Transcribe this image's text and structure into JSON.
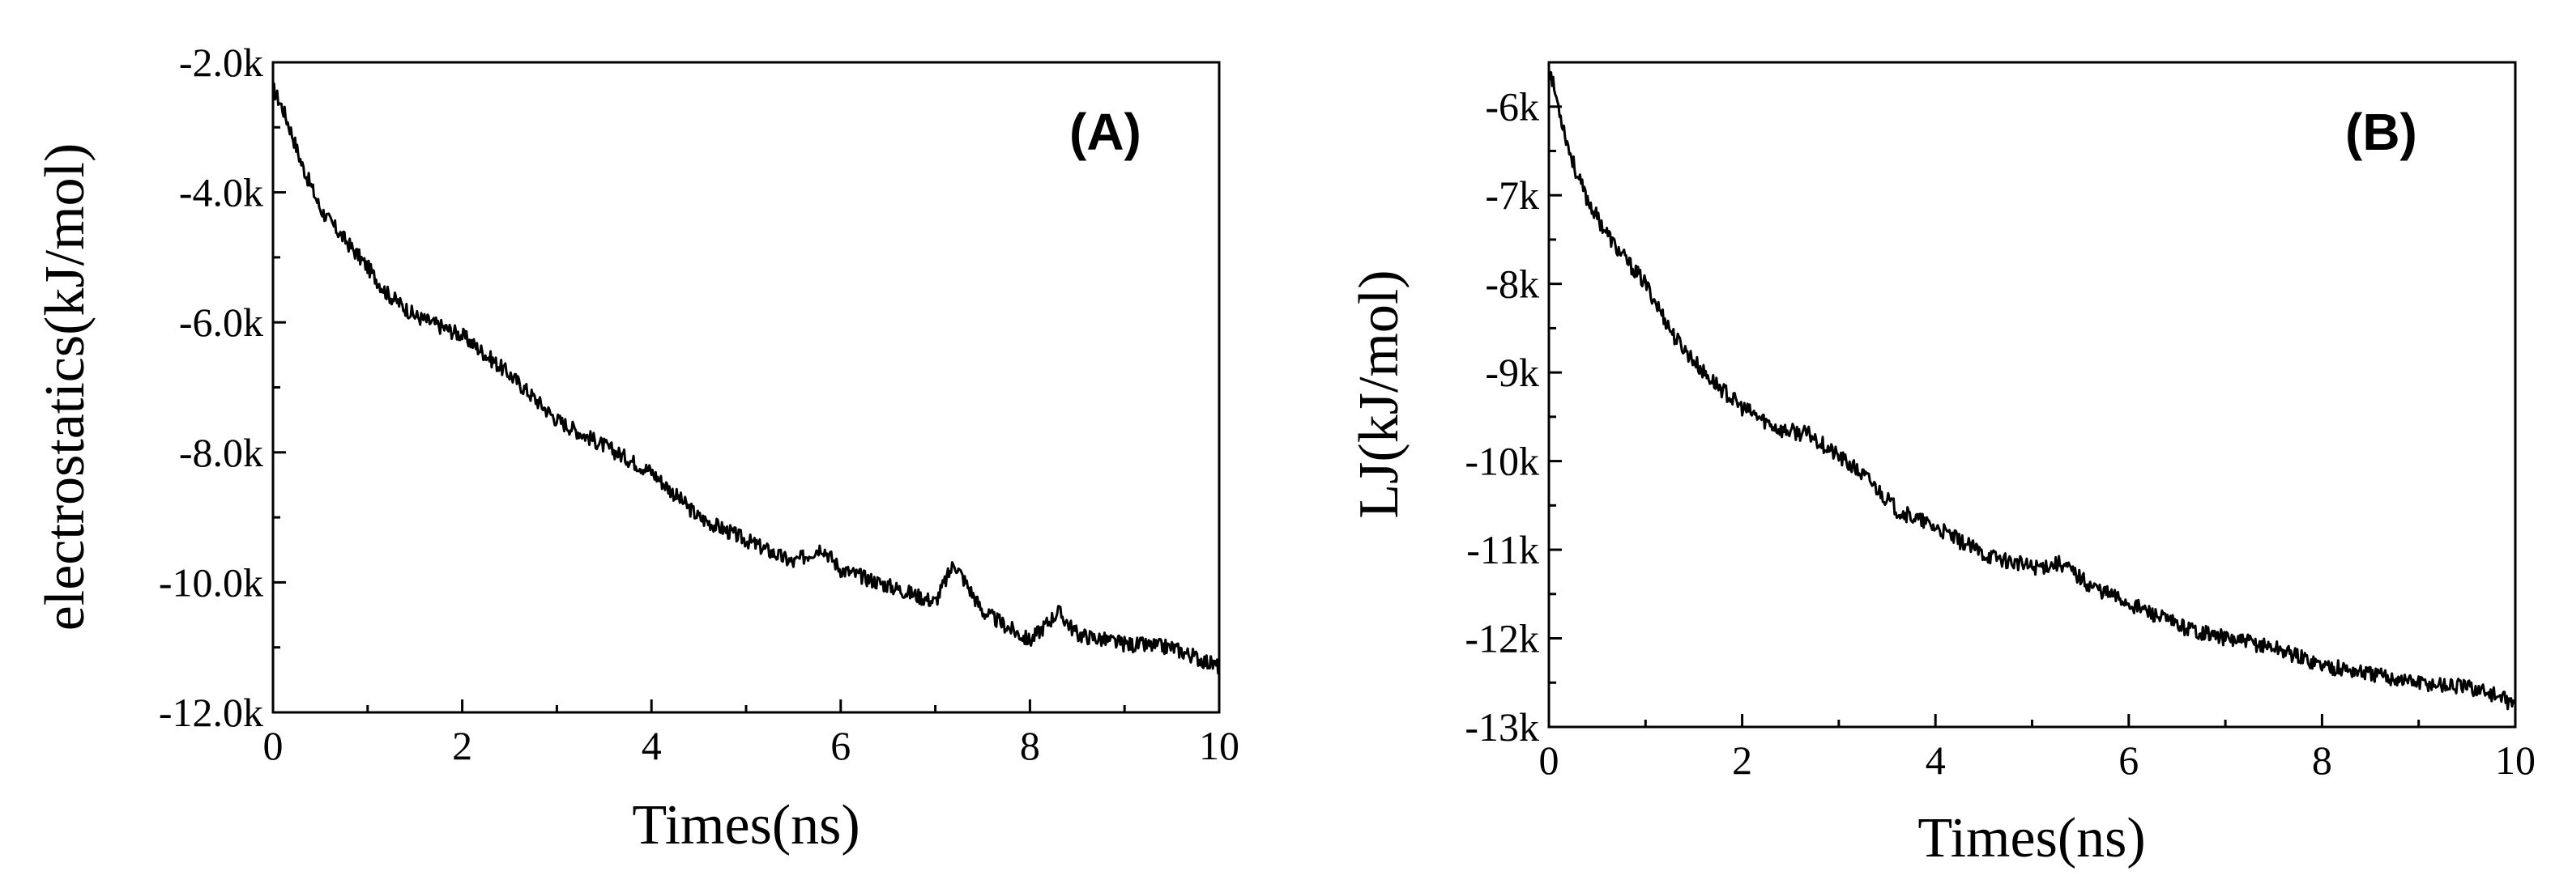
{
  "chart_data": [
    {
      "type": "line",
      "panel_label": "(A)",
      "xlabel": "Times(ns)",
      "ylabel": "electrostatics(kJ/mol)",
      "xlim": [
        0,
        10
      ],
      "ylim": [
        -12000,
        -2000
      ],
      "x_ticks": [
        0,
        2,
        4,
        6,
        8,
        10
      ],
      "x_tick_labels": [
        "0",
        "2",
        "4",
        "6",
        "8",
        "10"
      ],
      "y_ticks": [
        -12000,
        -10000,
        -8000,
        -6000,
        -4000,
        -2000
      ],
      "y_tick_labels": [
        "-12.0k",
        "-10.0k",
        "-8.0k",
        "-6.0k",
        "-4.0k",
        "-2.0k"
      ],
      "line_color": "#000000",
      "grid": false,
      "series": [
        {
          "x": [
            0,
            0.1,
            0.2,
            0.3,
            0.4,
            0.5,
            0.6,
            0.8,
            1.0,
            1.2,
            1.5,
            2.0,
            2.5,
            3.0,
            3.5,
            4.0,
            4.5,
            5.0,
            5.5,
            5.8,
            6.0,
            6.5,
            7.0,
            7.2,
            7.5,
            8.0,
            8.3,
            8.5,
            9.0,
            9.5,
            10.0
          ],
          "y": [
            -2400,
            -2700,
            -3100,
            -3550,
            -3900,
            -4250,
            -4450,
            -4800,
            -5150,
            -5550,
            -5900,
            -6200,
            -6800,
            -7500,
            -7900,
            -8300,
            -9000,
            -9350,
            -9700,
            -9450,
            -9800,
            -10050,
            -10300,
            -9700,
            -10450,
            -10900,
            -10450,
            -10800,
            -10950,
            -11000,
            -11300
          ]
        }
      ]
    },
    {
      "type": "line",
      "panel_label": "(B)",
      "xlabel": "Times(ns)",
      "ylabel": "LJ(kJ/mol)",
      "xlim": [
        0,
        10
      ],
      "ylim": [
        -13000,
        -5500
      ],
      "x_ticks": [
        0,
        2,
        4,
        6,
        8,
        10
      ],
      "x_tick_labels": [
        "0",
        "2",
        "4",
        "6",
        "8",
        "10"
      ],
      "y_ticks": [
        -13000,
        -12000,
        -11000,
        -10000,
        -9000,
        -8000,
        -7000,
        -6000
      ],
      "y_tick_labels": [
        "-13k",
        "-12k",
        "-11k",
        "-10k",
        "-9k",
        "-8k",
        "-7k",
        "-6k"
      ],
      "line_color": "#000000",
      "grid": false,
      "series": [
        {
          "x": [
            0,
            0.1,
            0.2,
            0.3,
            0.4,
            0.5,
            0.7,
            1.0,
            1.3,
            1.6,
            2.0,
            2.4,
            2.7,
            3.0,
            3.3,
            3.6,
            4.0,
            4.5,
            5.0,
            5.3,
            5.6,
            6.0,
            6.5,
            7.0,
            7.5,
            8.0,
            8.5,
            9.0,
            9.5,
            9.7,
            10.0
          ],
          "y": [
            -5550,
            -6000,
            -6450,
            -6800,
            -7050,
            -7250,
            -7600,
            -8000,
            -8600,
            -9000,
            -9400,
            -9650,
            -9700,
            -9950,
            -10200,
            -10550,
            -10750,
            -11050,
            -11200,
            -11150,
            -11400,
            -11600,
            -11850,
            -12000,
            -12100,
            -12300,
            -12400,
            -12500,
            -12550,
            -12600,
            -12750
          ]
        }
      ]
    }
  ]
}
